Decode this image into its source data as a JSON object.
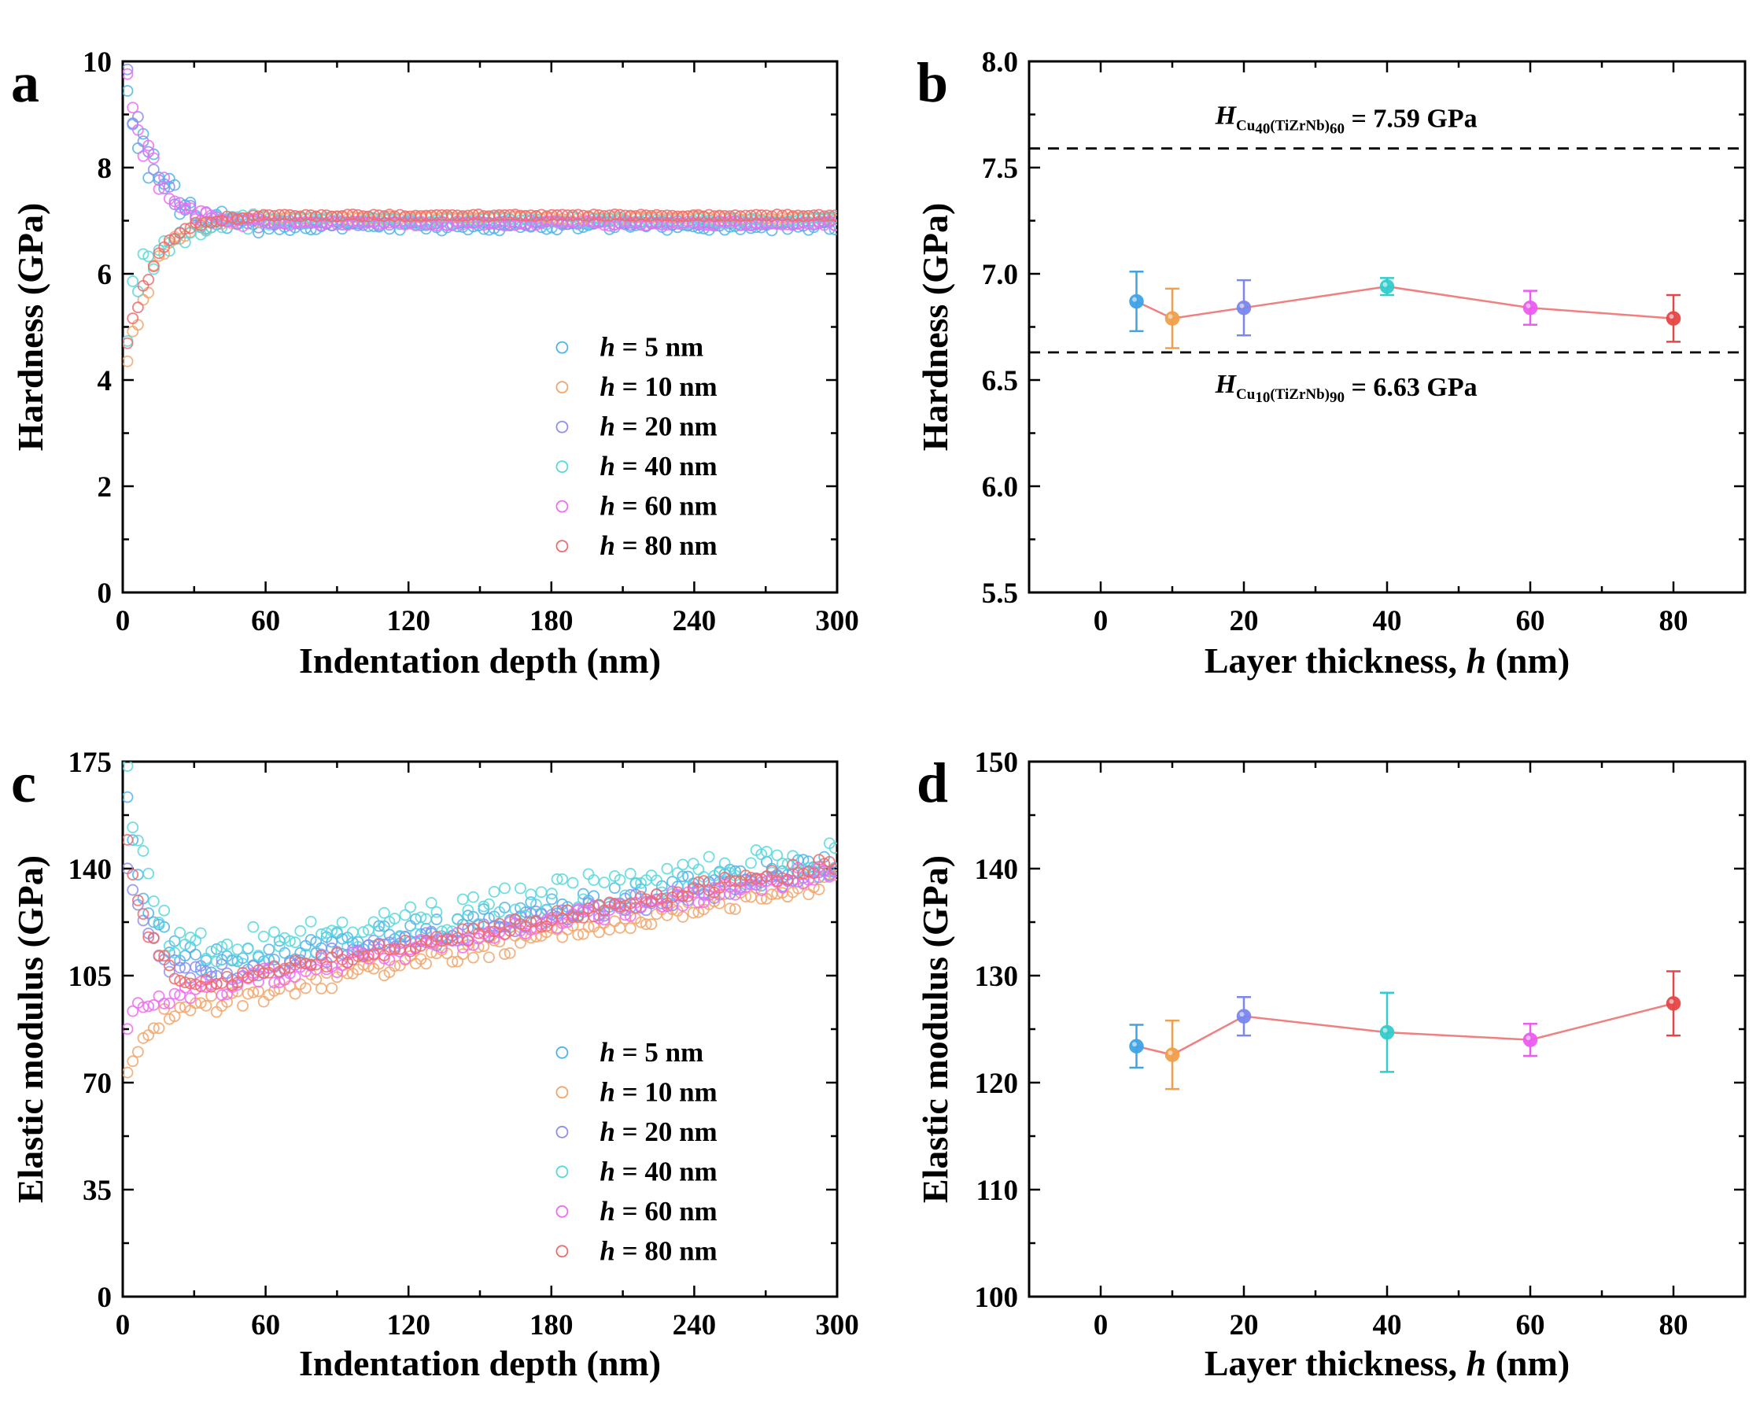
{
  "chart_data": [
    {
      "panel": "a",
      "type": "scatter",
      "xlabel": "Indentation depth (nm)",
      "ylabel": "Hardness (GPa)",
      "xlim": [
        0,
        300
      ],
      "ylim": [
        0,
        10
      ],
      "xticks": [
        "0",
        "60",
        "120",
        "180",
        "240",
        "300"
      ],
      "yticks": [
        "0",
        "2",
        "4",
        "6",
        "8",
        "10"
      ],
      "legend_position": "bottom-right",
      "series": [
        {
          "name": "h = 5 nm",
          "h": "5",
          "color": "#4fb3e8",
          "start": 9.8,
          "end": 6.9,
          "noise": 0.55
        },
        {
          "name": "h = 10 nm",
          "h": "10",
          "color": "#f2a56a",
          "start": 4.3,
          "end": 7.05,
          "noise": 0.2
        },
        {
          "name": "h = 20 nm",
          "h": "20",
          "color": "#8c8ef0",
          "start": 9.5,
          "end": 6.95,
          "noise": 0.3
        },
        {
          "name": "h = 40 nm",
          "h": "40",
          "color": "#56d8dc",
          "start": 5.2,
          "end": 7.0,
          "noise": 0.45
        },
        {
          "name": "h = 60 nm",
          "h": "60",
          "color": "#ef6cf2",
          "start": 9.8,
          "end": 6.95,
          "noise": 0.3
        },
        {
          "name": "h = 80 nm",
          "h": "80",
          "color": "#ef6b6b",
          "start": 4.6,
          "end": 7.1,
          "noise": 0.12
        }
      ]
    },
    {
      "panel": "b",
      "type": "line",
      "xlabel": "Layer thickness, h (nm)",
      "xlabel_pre": "Layer thickness, ",
      "xlabel_var": "h",
      "xlabel_post": " (nm)",
      "ylabel": "Hardness (GPa)",
      "xlim": [
        -10,
        90
      ],
      "ylim": [
        5.5,
        8.0
      ],
      "xticks": [
        "0",
        "20",
        "40",
        "60",
        "80"
      ],
      "yticks": [
        "5.5",
        "6.0",
        "6.5",
        "7.0",
        "7.5",
        "8.0"
      ],
      "x": [
        5,
        10,
        20,
        40,
        60,
        80
      ],
      "y": [
        6.87,
        6.79,
        6.84,
        6.94,
        6.84,
        6.79
      ],
      "err": [
        0.14,
        0.14,
        0.13,
        0.04,
        0.08,
        0.11
      ],
      "point_colors": [
        "#3fa3e6",
        "#f0a04b",
        "#7b86ef",
        "#33cccc",
        "#ec5cf0",
        "#e64646"
      ],
      "line_color": "#f08080",
      "reference_lines": [
        {
          "value": 7.59,
          "label_var": "H",
          "label_sub1": "Cu",
          "label_sub2": "40",
          "label_mid": "(TiZrNb)",
          "label_sub3": "60",
          "label_value": " = 7.59 GPa"
        },
        {
          "value": 6.63,
          "label_var": "H",
          "label_sub1": "Cu",
          "label_sub2": "10",
          "label_mid": "(TiZrNb)",
          "label_sub3": "90",
          "label_value": " = 6.63 GPa"
        }
      ]
    },
    {
      "panel": "c",
      "type": "scatter",
      "xlabel": "Indentation depth (nm)",
      "ylabel": "Elastic modulus (GPa)",
      "xlim": [
        0,
        300
      ],
      "ylim": [
        0,
        175
      ],
      "xticks": [
        "0",
        "60",
        "120",
        "180",
        "240",
        "300"
      ],
      "yticks": [
        "0",
        "35",
        "70",
        "105",
        "140",
        "175"
      ],
      "legend_position": "bottom-right",
      "series": [
        {
          "name": "h = 5 nm",
          "h": "5",
          "color": "#4fb3e8",
          "start": 160,
          "min": 108,
          "end": 142,
          "noise": 4
        },
        {
          "name": "h = 10 nm",
          "h": "10",
          "color": "#f2a56a",
          "start": 75,
          "min": 95,
          "end": 136,
          "noise": 3
        },
        {
          "name": "h = 20 nm",
          "h": "20",
          "color": "#8c8ef0",
          "start": 140,
          "min": 104,
          "end": 140,
          "noise": 3
        },
        {
          "name": "h = 40 nm",
          "h": "40",
          "color": "#56d8dc",
          "start": 170,
          "min": 112,
          "end": 145,
          "noise": 6
        },
        {
          "name": "h = 60 nm",
          "h": "60",
          "color": "#ef6cf2",
          "start": 90,
          "min": 100,
          "end": 140,
          "noise": 3
        },
        {
          "name": "h = 80 nm",
          "h": "80",
          "color": "#ef6b6b",
          "start": 150,
          "min": 101,
          "end": 142,
          "noise": 2.5
        }
      ]
    },
    {
      "panel": "d",
      "type": "line",
      "xlabel": "Layer thickness, h (nm)",
      "xlabel_pre": "Layer thickness, ",
      "xlabel_var": "h",
      "xlabel_post": " (nm)",
      "ylabel": "Elastic modulus (GPa)",
      "xlim": [
        -10,
        90
      ],
      "ylim": [
        100,
        150
      ],
      "xticks": [
        "0",
        "20",
        "40",
        "60",
        "80"
      ],
      "yticks": [
        "100",
        "110",
        "120",
        "130",
        "140",
        "150"
      ],
      "x": [
        5,
        10,
        20,
        40,
        60,
        80
      ],
      "y": [
        123.4,
        122.6,
        126.2,
        124.7,
        124.0,
        127.4
      ],
      "err": [
        2.0,
        3.2,
        1.8,
        3.7,
        1.5,
        3.0
      ],
      "point_colors": [
        "#3fa3e6",
        "#f0a04b",
        "#7b86ef",
        "#33cccc",
        "#ec5cf0",
        "#e64646"
      ],
      "line_color": "#f08080",
      "reference_lines": []
    }
  ],
  "legend_unit": "nm"
}
